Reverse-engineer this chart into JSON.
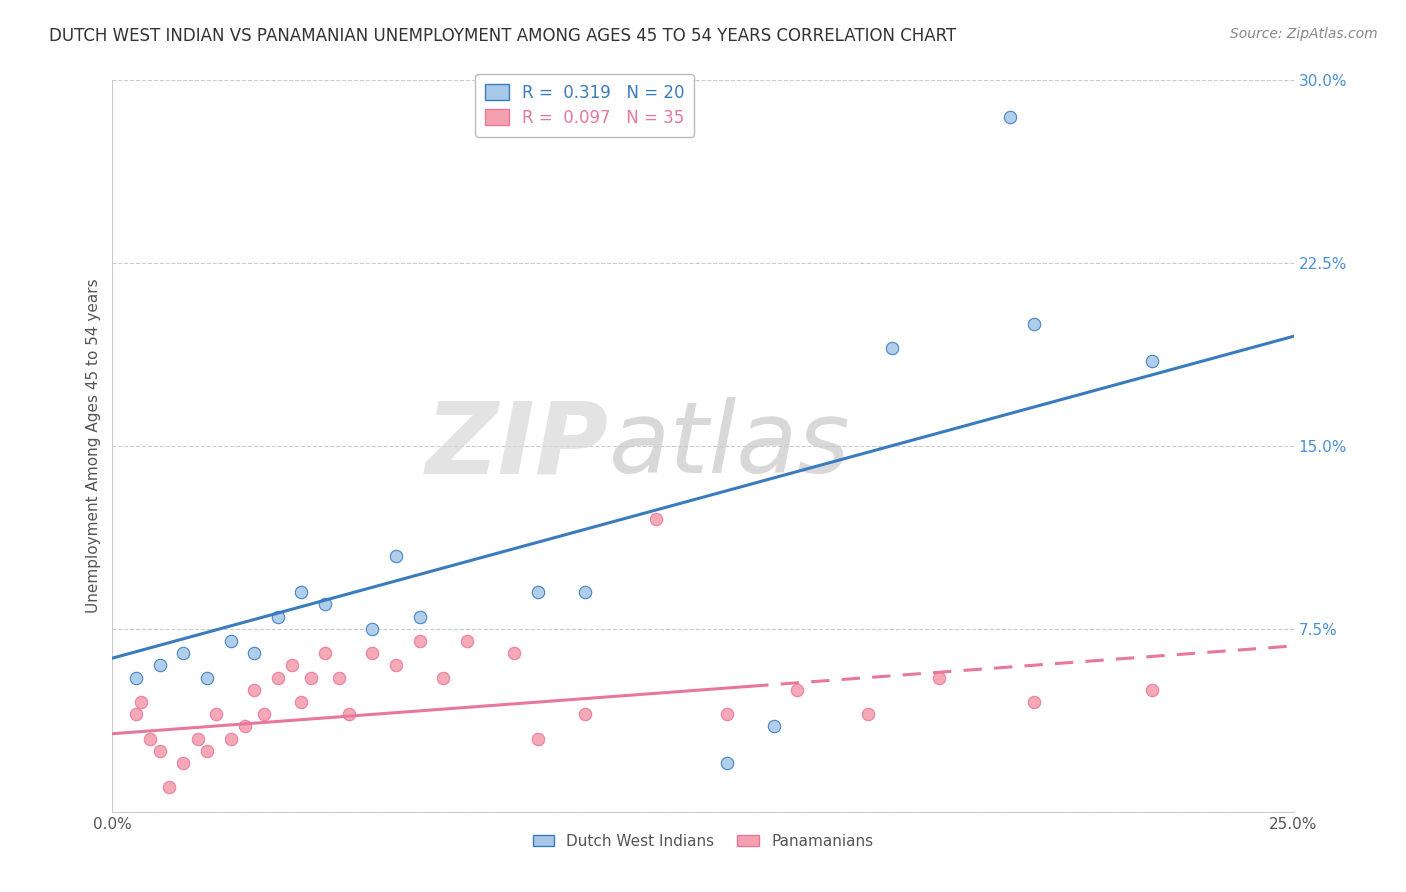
{
  "title": "DUTCH WEST INDIAN VS PANAMANIAN UNEMPLOYMENT AMONG AGES 45 TO 54 YEARS CORRELATION CHART",
  "source": "Source: ZipAtlas.com",
  "ylabel": "Unemployment Among Ages 45 to 54 years",
  "xlim": [
    0.0,
    0.25
  ],
  "ylim": [
    0.0,
    0.3
  ],
  "xticks": [
    0.0,
    0.05,
    0.1,
    0.15,
    0.2,
    0.25
  ],
  "yticks": [
    0.0,
    0.075,
    0.15,
    0.225,
    0.3
  ],
  "xticklabels": [
    "0.0%",
    "",
    "",
    "",
    "",
    "25.0%"
  ],
  "yticklabels": [
    "",
    "7.5%",
    "15.0%",
    "22.5%",
    "30.0%"
  ],
  "series1_name": "Dutch West Indians",
  "series2_name": "Panamanians",
  "series1_color": "#a8c8e8",
  "series2_color": "#f4a0b0",
  "series1_line_color": "#3a7bbf",
  "series2_line_color": "#e8789a",
  "background_color": "#ffffff",
  "grid_color": "#cccccc",
  "legend_r1": "R =  0.319   N = 20",
  "legend_r2": "R =  0.097   N = 35",
  "legend_color1": "#3a7bbf",
  "legend_color2": "#e8789a",
  "title_fontsize": 12,
  "label_fontsize": 11,
  "tick_fontsize": 11,
  "dwi_x": [
    0.005,
    0.01,
    0.015,
    0.02,
    0.025,
    0.03,
    0.035,
    0.04,
    0.045,
    0.055,
    0.06,
    0.065,
    0.09,
    0.1,
    0.13,
    0.14,
    0.165,
    0.19,
    0.195,
    0.22
  ],
  "dwi_y": [
    0.055,
    0.06,
    0.065,
    0.055,
    0.07,
    0.065,
    0.08,
    0.09,
    0.085,
    0.075,
    0.105,
    0.08,
    0.09,
    0.09,
    0.02,
    0.035,
    0.19,
    0.285,
    0.2,
    0.185
  ],
  "pan_x": [
    0.005,
    0.006,
    0.008,
    0.01,
    0.012,
    0.015,
    0.018,
    0.02,
    0.022,
    0.025,
    0.028,
    0.03,
    0.032,
    0.035,
    0.038,
    0.04,
    0.042,
    0.045,
    0.048,
    0.05,
    0.055,
    0.06,
    0.065,
    0.07,
    0.075,
    0.085,
    0.09,
    0.1,
    0.115,
    0.13,
    0.145,
    0.16,
    0.175,
    0.195,
    0.22
  ],
  "pan_y": [
    0.04,
    0.045,
    0.03,
    0.025,
    0.01,
    0.02,
    0.03,
    0.025,
    0.04,
    0.03,
    0.035,
    0.05,
    0.04,
    0.055,
    0.06,
    0.045,
    0.055,
    0.065,
    0.055,
    0.04,
    0.065,
    0.06,
    0.07,
    0.055,
    0.07,
    0.065,
    0.03,
    0.04,
    0.12,
    0.04,
    0.05,
    0.04,
    0.055,
    0.045,
    0.05
  ],
  "line1_x0": 0.0,
  "line1_y0": 0.063,
  "line1_x1": 0.25,
  "line1_y1": 0.195,
  "line2_x0": 0.0,
  "line2_y0": 0.032,
  "line2_x1": 0.25,
  "line2_y1": 0.068
}
